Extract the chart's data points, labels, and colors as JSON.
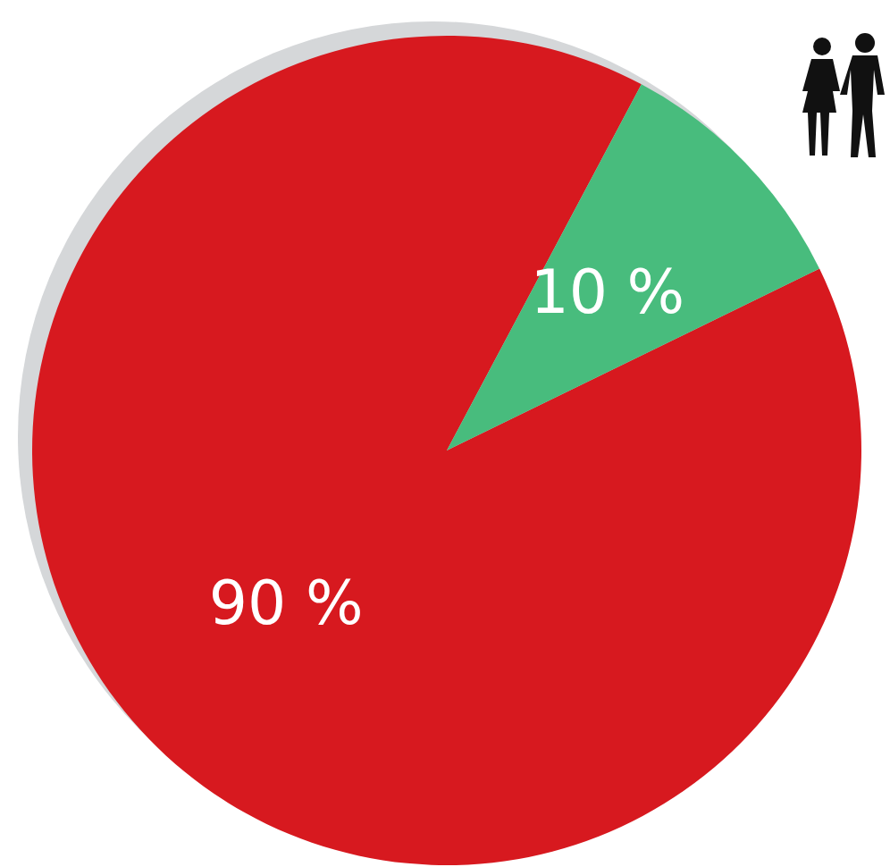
{
  "chart_data": {
    "type": "pie",
    "categories": [
      null,
      null
    ],
    "values": [
      90,
      10
    ],
    "colors": [
      "#d7191f",
      "#48bc7d"
    ],
    "value_labels": [
      "90 %",
      "10 %"
    ]
  }
}
